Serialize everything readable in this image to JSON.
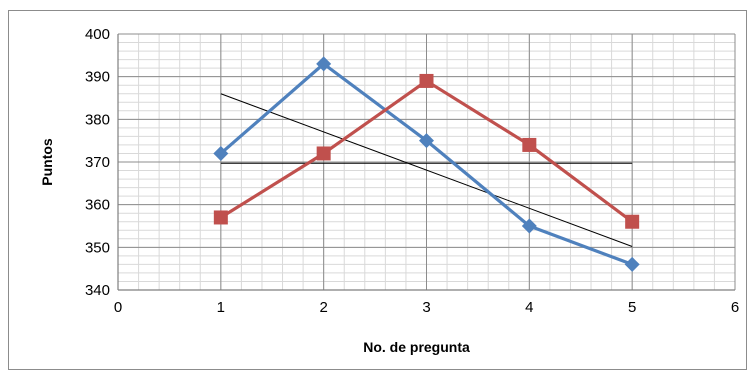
{
  "chart_data": {
    "type": "line",
    "xlabel": "No. de pregunta",
    "ylabel": "Puntos",
    "xlim": [
      0,
      6
    ],
    "ylim": [
      340,
      400
    ],
    "x_ticks": [
      "0",
      "1",
      "2",
      "3",
      "4",
      "5",
      "6"
    ],
    "y_ticks": [
      "340",
      "350",
      "360",
      "370",
      "380",
      "390",
      "400"
    ],
    "grid": "major and minor on",
    "legend": "none",
    "series": [
      {
        "x": [
          1,
          2,
          3,
          4,
          5
        ],
        "values": [
          372,
          393,
          375,
          355,
          346
        ],
        "color": "#4f81bd",
        "marker": "diamond"
      },
      {
        "x": [
          1,
          2,
          3,
          4,
          5
        ],
        "values": [
          357,
          372,
          389,
          374,
          356
        ],
        "color": "#c0504d",
        "marker": "square"
      }
    ],
    "reference_lines": [
      {
        "type": "trend",
        "x": [
          1,
          5
        ],
        "values": [
          386,
          350.2
        ],
        "color": "#000000"
      },
      {
        "type": "horizontal",
        "x": [
          1,
          5
        ],
        "values": [
          369.7,
          369.7
        ],
        "color": "#000000"
      }
    ]
  }
}
